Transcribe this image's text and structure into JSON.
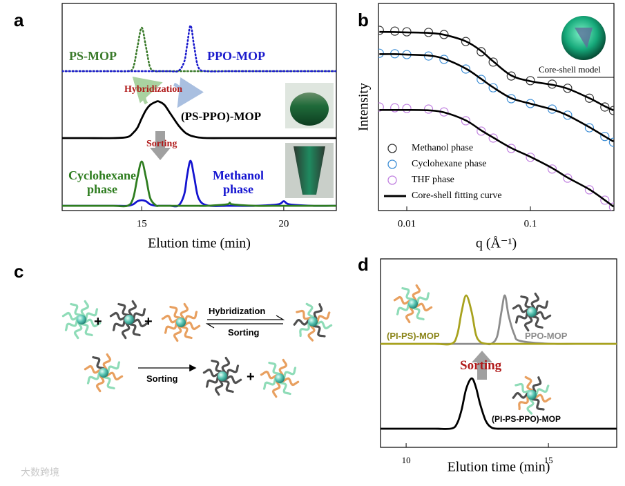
{
  "chart_data": [
    {
      "type": "line",
      "panel_label": "a",
      "xlabel": "Elution time (min)",
      "xlim": [
        12.2,
        21.85
      ],
      "xticks": [
        15,
        20
      ],
      "ylim": [
        0,
        10
      ],
      "grid": false,
      "x": [
        12.2,
        13,
        14,
        14.5,
        14.7,
        14.85,
        15,
        15.15,
        15.3,
        15.5,
        15.6,
        15.8,
        16,
        16.3,
        16.5,
        16.6,
        16.72,
        16.85,
        17,
        17.3,
        18,
        18.1,
        18.2,
        19,
        19.8,
        20,
        20.2,
        21,
        21.85
      ],
      "series": [
        {
          "name": "PS-MOP",
          "color": "#3a7a2a",
          "style": "dotted",
          "values": [
            6.73,
            6.73,
            6.73,
            6.73,
            6.9,
            7.9,
            8.83,
            7.9,
            6.9,
            6.73,
            6.73,
            6.73,
            6.73,
            6.73,
            6.73,
            6.73,
            6.73,
            6.73,
            6.73,
            6.73,
            6.73,
            6.73,
            6.73,
            6.73,
            6.73,
            6.73,
            6.73,
            6.73,
            6.73
          ]
        },
        {
          "name": "PPO-MOP",
          "color": "#1a1acc",
          "style": "dotted",
          "values": [
            6.73,
            6.73,
            6.73,
            6.73,
            6.73,
            6.73,
            6.73,
            6.73,
            6.73,
            6.73,
            6.73,
            6.73,
            6.73,
            6.75,
            7.2,
            8.0,
            8.93,
            7.9,
            6.9,
            6.73,
            6.73,
            6.73,
            6.73,
            6.73,
            6.73,
            6.73,
            6.73,
            6.73,
            6.73
          ]
        },
        {
          "name": "(PS-PPO)-MOP",
          "color": "#000000",
          "style": "solid",
          "values": [
            3.5,
            3.5,
            3.5,
            3.55,
            3.75,
            4.0,
            4.45,
            4.85,
            5.1,
            5.25,
            5.27,
            5.1,
            4.7,
            4.1,
            3.8,
            3.7,
            3.62,
            3.57,
            3.53,
            3.5,
            3.5,
            3.5,
            3.5,
            3.5,
            3.5,
            3.5,
            3.5,
            3.5,
            3.5
          ]
        },
        {
          "name": "Methanol phase",
          "color": "#1414d0",
          "style": "solid",
          "values": [
            0.23,
            0.23,
            0.23,
            0.23,
            0.3,
            0.45,
            0.5,
            0.45,
            0.3,
            0.23,
            0.23,
            0.23,
            0.23,
            0.25,
            0.8,
            1.7,
            2.4,
            1.6,
            0.6,
            0.25,
            0.23,
            0.23,
            0.23,
            0.23,
            0.3,
            0.45,
            0.3,
            0.23,
            0.23
          ]
        },
        {
          "name": "Cyclohexane phase",
          "color": "#2e7d1f",
          "style": "solid",
          "values": [
            0.23,
            0.23,
            0.23,
            0.23,
            0.6,
            1.6,
            2.37,
            1.6,
            0.6,
            0.25,
            0.23,
            0.23,
            0.23,
            0.23,
            0.23,
            0.23,
            0.23,
            0.23,
            0.23,
            0.23,
            0.3,
            0.38,
            0.3,
            0.23,
            0.23,
            0.23,
            0.23,
            0.23,
            0.23
          ]
        }
      ],
      "annotations": [
        "Hybridization",
        "Sorting"
      ]
    },
    {
      "type": "scatter",
      "panel_label": "b",
      "xlabel": "q (Å⁻¹)",
      "ylabel": "Intensity",
      "log_x": true,
      "log_y": true,
      "xlim": [
        0.0059,
        0.474
      ],
      "xticks": [
        0.01,
        0.1
      ],
      "ylim": [
        0.001,
        1000
      ],
      "grid": false,
      "x": [
        0.006,
        0.008,
        0.01,
        0.015,
        0.02,
        0.03,
        0.04,
        0.05,
        0.07,
        0.1,
        0.15,
        0.2,
        0.3,
        0.4,
        0.47
      ],
      "series": [
        {
          "name": "Methanol phase",
          "color": "#333333",
          "values": [
            166,
            158,
            151,
            145,
            126,
            79,
            40,
            20,
            7.9,
            5.8,
            4.6,
            3.5,
            1.8,
            1.0,
            0.79
          ]
        },
        {
          "name": "Cyclohexane phase",
          "color": "#3f8fd6",
          "values": [
            36,
            35,
            33,
            30,
            24,
            12.6,
            6.3,
            3.6,
            1.74,
            1.26,
            0.87,
            0.58,
            0.25,
            0.14,
            0.095
          ]
        },
        {
          "name": "THF phase",
          "color": "#c080e0",
          "values": [
            1.0,
            0.95,
            0.91,
            0.87,
            0.72,
            0.4,
            0.2,
            0.126,
            0.063,
            0.035,
            0.016,
            0.0087,
            0.004,
            0.002,
            0.00126
          ]
        }
      ],
      "fit": {
        "name": "Core-shell fitting curve",
        "color": "#000000",
        "curves": [
          [
            150,
            148,
            145,
            140,
            124,
            80,
            42,
            21,
            8.2,
            5.6,
            4.4,
            3.4,
            1.8,
            1.05,
            0.8
          ],
          [
            34,
            34,
            33,
            31,
            25,
            13,
            6.5,
            3.7,
            1.8,
            1.25,
            0.85,
            0.57,
            0.26,
            0.14,
            0.1
          ],
          [
            0.82,
            0.82,
            0.82,
            0.8,
            0.7,
            0.41,
            0.21,
            0.13,
            0.065,
            0.036,
            0.017,
            0.009,
            0.0041,
            0.002,
            0.0013
          ]
        ]
      },
      "annotations": [
        "Core-shell model"
      ]
    },
    {
      "type": "line",
      "panel_label": "d",
      "xlabel": "Elution time (min)",
      "xlim": [
        9.1,
        17.4
      ],
      "xticks": [
        10,
        15
      ],
      "ylim": [
        0,
        10
      ],
      "grid": false,
      "x": [
        9.1,
        10,
        11,
        11.6,
        11.8,
        11.95,
        12.11,
        12.3,
        12.45,
        12.6,
        12.8,
        13,
        13.2,
        13.35,
        13.47,
        13.6,
        13.8,
        14,
        15,
        16,
        17.4
      ],
      "series": [
        {
          "name": "PPO-MOP",
          "color": "#8c8c8c",
          "style": "solid",
          "values": [
            5.49,
            5.49,
            5.49,
            5.49,
            5.49,
            5.49,
            5.49,
            5.49,
            5.49,
            5.49,
            5.49,
            5.5,
            5.9,
            7.2,
            8.06,
            7.0,
            6.0,
            5.65,
            5.5,
            5.49,
            5.49
          ]
        },
        {
          "name": "(PI-PS)-MOP",
          "color": "#a8a21e",
          "style": "solid",
          "values": [
            5.49,
            5.49,
            5.49,
            5.5,
            6.0,
            7.2,
            8.06,
            7.2,
            6.0,
            5.6,
            5.5,
            5.49,
            5.49,
            5.49,
            5.49,
            5.49,
            5.49,
            5.49,
            5.49,
            5.49,
            5.49
          ]
        },
        {
          "name": "(PI-PS-PPO)-MOP",
          "color": "#000000",
          "style": "solid",
          "values": [
            0.99,
            0.99,
            0.99,
            1.0,
            1.3,
            2.0,
            3.1,
            3.66,
            3.2,
            2.3,
            1.4,
            1.05,
            0.99,
            0.99,
            0.99,
            0.99,
            0.99,
            0.99,
            0.99,
            0.99,
            0.99
          ]
        }
      ],
      "annotations": [
        "Sorting"
      ]
    }
  ],
  "diagram": {
    "label": "c",
    "hybridization": "Hybridization",
    "sorting_top": "Sorting",
    "sorting_bottom": "Sorting",
    "plus": [
      "+",
      "+",
      "+"
    ]
  },
  "watermark": "大数跨境"
}
